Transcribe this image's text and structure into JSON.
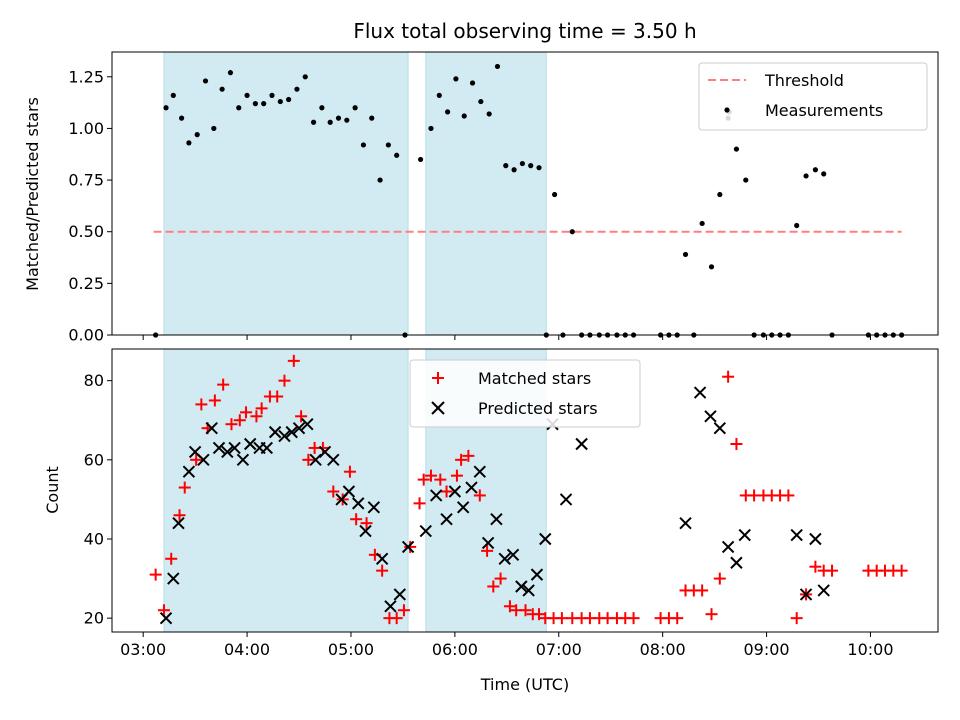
{
  "chart_data": {
    "title": "Flux total observing time = 3.50 h",
    "xlabel": "Time (UTC)",
    "x_ticks": [
      "03:00",
      "04:00",
      "05:00",
      "06:00",
      "07:00",
      "08:00",
      "09:00",
      "10:00"
    ],
    "x_tick_hours": [
      3,
      4,
      5,
      6,
      7,
      8,
      9,
      10
    ],
    "xlim_hours": [
      2.7,
      10.65
    ],
    "shaded_intervals_hours": [
      [
        3.2,
        5.55
      ],
      [
        5.72,
        6.88
      ]
    ],
    "shade_color": "#add8e6",
    "panels": [
      {
        "type": "scatter",
        "ylabel": "Matched/Predicted stars",
        "ylim": [
          0,
          1.37
        ],
        "y_ticks": [
          0,
          0.25,
          0.5,
          0.75,
          1.0,
          1.25
        ],
        "y_tick_labels": [
          "0.00",
          "0.25",
          "0.50",
          "0.75",
          "1.00",
          "1.25"
        ],
        "threshold": {
          "name": "Threshold",
          "value": 0.5,
          "x_range_hours": [
            3.1,
            10.3
          ],
          "color": "#ff7f7f"
        },
        "measurements": {
          "name": "Measurements",
          "color": "#000000",
          "x_hours": [
            3.12,
            3.22,
            3.29,
            3.37,
            3.44,
            3.52,
            3.6,
            3.68,
            3.76,
            3.84,
            3.92,
            4.0,
            4.08,
            4.16,
            4.24,
            4.32,
            4.4,
            4.48,
            4.56,
            4.64,
            4.72,
            4.8,
            4.88,
            4.96,
            5.04,
            5.12,
            5.2,
            5.28,
            5.36,
            5.44,
            5.52,
            5.67,
            5.77,
            5.85,
            5.93,
            6.01,
            6.09,
            6.17,
            6.25,
            6.33,
            6.41,
            6.49,
            6.57,
            6.65,
            6.73,
            6.81,
            6.88,
            6.96,
            7.04,
            7.13,
            7.22,
            7.3,
            7.39,
            7.47,
            7.56,
            7.64,
            7.72,
            7.98,
            8.06,
            8.14,
            8.22,
            8.3,
            8.38,
            8.47,
            8.55,
            8.63,
            8.64,
            8.71,
            8.8,
            8.88,
            8.97,
            9.05,
            9.13,
            9.21,
            9.29,
            9.38,
            9.47,
            9.55,
            9.63,
            9.98,
            10.06,
            10.14,
            10.22,
            10.3
          ],
          "values": [
            0.0,
            1.1,
            1.16,
            1.05,
            0.93,
            0.97,
            1.23,
            1.0,
            1.19,
            1.27,
            1.1,
            1.16,
            1.12,
            1.12,
            1.16,
            1.13,
            1.14,
            1.19,
            1.25,
            1.03,
            1.1,
            1.03,
            1.05,
            1.04,
            1.1,
            0.92,
            1.05,
            0.75,
            0.92,
            0.87,
            0.0,
            0.85,
            1.0,
            1.16,
            1.08,
            1.24,
            1.06,
            1.22,
            1.13,
            1.07,
            1.3,
            0.82,
            0.8,
            0.83,
            0.82,
            0.81,
            0.0,
            0.68,
            0.0,
            0.5,
            0.0,
            0.0,
            0.0,
            0.0,
            0.0,
            0.0,
            0.0,
            0.0,
            0.0,
            0.0,
            0.39,
            0.0,
            0.54,
            0.33,
            0.68,
            1.05,
            1.08,
            0.9,
            0.75,
            0.0,
            0.0,
            0.0,
            0.0,
            0.0,
            0.53,
            0.77,
            0.8,
            0.78,
            0.0,
            0.0,
            0.0,
            0.0,
            0.0,
            0.0
          ]
        },
        "legend": [
          "Threshold",
          "Measurements"
        ],
        "legend_position": "upper right"
      },
      {
        "type": "scatter",
        "ylabel": "Count",
        "ylim": [
          16.5,
          88
        ],
        "y_ticks": [
          20,
          40,
          60,
          80
        ],
        "y_tick_labels": [
          "20",
          "40",
          "60",
          "80"
        ],
        "series": [
          {
            "name": "Matched stars",
            "marker": "plus",
            "color": "#ff0000",
            "x_hours": [
              3.12,
              3.2,
              3.27,
              3.35,
              3.4,
              3.51,
              3.56,
              3.62,
              3.69,
              3.77,
              3.85,
              3.93,
              3.99,
              4.09,
              4.14,
              4.22,
              4.29,
              4.36,
              4.45,
              4.52,
              4.59,
              4.65,
              4.73,
              4.83,
              4.92,
              4.99,
              5.05,
              5.15,
              5.23,
              5.3,
              5.37,
              5.44,
              5.51,
              5.57,
              5.66,
              5.7,
              5.77,
              5.86,
              5.92,
              6.02,
              6.06,
              6.13,
              6.24,
              6.31,
              6.37,
              6.44,
              6.53,
              6.59,
              6.68,
              6.75,
              6.81,
              6.87,
              6.95,
              7.03,
              7.13,
              7.22,
              7.3,
              7.39,
              7.47,
              7.56,
              7.64,
              7.72,
              7.98,
              8.06,
              8.14,
              8.22,
              8.3,
              8.38,
              8.47,
              8.55,
              8.63,
              8.71,
              8.8,
              8.88,
              8.97,
              9.05,
              9.13,
              9.21,
              9.29,
              9.38,
              9.47,
              9.55,
              9.63,
              9.98,
              10.06,
              10.14,
              10.22,
              10.3
            ],
            "values": [
              31,
              22,
              35,
              46,
              53,
              60,
              74,
              68,
              75,
              79,
              69,
              70,
              72,
              71,
              73,
              76,
              76,
              80,
              85,
              71,
              60,
              63,
              63,
              52,
              50,
              57,
              45,
              44,
              36,
              32,
              20,
              20,
              22,
              38,
              49,
              55,
              56,
              55,
              52,
              56,
              60,
              61,
              51,
              37,
              28,
              30,
              23,
              22,
              22,
              21,
              21,
              20,
              20,
              20,
              20,
              20,
              20,
              20,
              20,
              20,
              20,
              20,
              20,
              20,
              20,
              27,
              27,
              27,
              21,
              30,
              81,
              64,
              51,
              51,
              51,
              51,
              51,
              51,
              20,
              26,
              33,
              32,
              32,
              32,
              32,
              32,
              32,
              32
            ]
          },
          {
            "name": "Predicted stars",
            "marker": "x",
            "color": "#000000",
            "x_hours": [
              3.22,
              3.29,
              3.34,
              3.44,
              3.5,
              3.58,
              3.66,
              3.73,
              3.81,
              3.88,
              3.96,
              4.03,
              4.12,
              4.19,
              4.27,
              4.36,
              4.43,
              4.5,
              4.58,
              4.66,
              4.75,
              4.83,
              4.91,
              4.98,
              5.07,
              5.14,
              5.22,
              5.3,
              5.38,
              5.47,
              5.55,
              5.72,
              5.82,
              5.92,
              6.0,
              6.08,
              6.16,
              6.24,
              6.32,
              6.4,
              6.48,
              6.56,
              6.64,
              6.71,
              6.79,
              6.87,
              6.94,
              7.07,
              7.22,
              8.22,
              8.36,
              8.46,
              8.55,
              8.63,
              8.71,
              8.79,
              9.29,
              9.38,
              9.47,
              9.55
            ],
            "values": [
              20,
              30,
              44,
              57,
              62,
              60,
              68,
              63,
              62,
              63,
              60,
              64,
              63,
              63,
              67,
              66,
              67,
              68,
              69,
              60,
              62,
              60,
              50,
              52,
              49,
              42,
              48,
              35,
              23,
              26,
              38,
              42,
              51,
              45,
              52,
              48,
              53,
              57,
              39,
              45,
              35,
              36,
              28,
              27,
              31,
              40,
              69,
              50,
              64,
              44,
              77,
              71,
              68,
              38,
              34,
              41,
              41,
              26,
              40,
              27
            ],
            "x_hours_note": "",
            "x_hours_fixed": []
          }
        ],
        "legend": [
          "Matched stars",
          "Predicted stars"
        ],
        "legend_position": "upper center"
      }
    ]
  }
}
